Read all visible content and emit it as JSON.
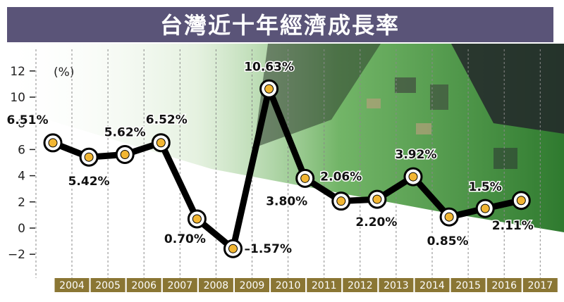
{
  "chart_data": {
    "type": "line",
    "title": "台灣近十年經濟成長率",
    "ylabel": "(%)",
    "ylim": [
      -2,
      12
    ],
    "yticks": [
      -2,
      0,
      2,
      4,
      6,
      8,
      10,
      12
    ],
    "grid": "vertical dashed",
    "categories": [
      "2004",
      "2005",
      "2006",
      "2007",
      "2008",
      "2009",
      "2010",
      "2011",
      "2012",
      "2013",
      "2014",
      "2015",
      "2016",
      "2017"
    ],
    "values": [
      6.51,
      5.42,
      5.62,
      6.52,
      0.7,
      -1.57,
      10.63,
      3.8,
      2.06,
      2.2,
      3.92,
      0.85,
      1.5,
      2.11
    ],
    "data_labels": [
      "6.51%",
      "5.42%",
      "5.62%",
      "6.52%",
      "0.70%",
      "–1.57%",
      "10.63%",
      "3.80%",
      "2.06%",
      "2.20%",
      "3.92%",
      "0.85%",
      "1.5%",
      "2.11%"
    ],
    "colors": {
      "title_bar": "#5a5478",
      "title_text": "#ffffff",
      "line": "#000000",
      "marker_fill": "#f2b632",
      "year_box": "#8a7634",
      "year_text": "#ffffff",
      "board": "#3d8a3a"
    }
  }
}
